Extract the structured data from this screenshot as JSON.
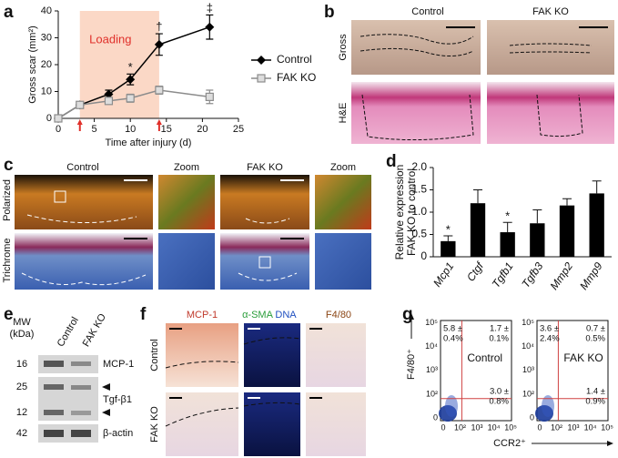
{
  "panel_labels": [
    "a",
    "b",
    "c",
    "d",
    "e",
    "f",
    "g"
  ],
  "chart_data": [
    {
      "type": "line",
      "x_label": "Time after injury (d)",
      "y_label": "Gross scar (mm²)",
      "x": [
        0,
        3,
        7,
        10,
        14,
        21
      ],
      "series": [
        {
          "name": "Control",
          "color": "#000000",
          "marker": "diamond",
          "values": [
            0,
            5,
            9,
            14.5,
            27.5,
            34
          ],
          "errors": [
            0,
            0.5,
            1.5,
            2,
            4,
            4.5
          ]
        },
        {
          "name": "FAK KO",
          "color": "#8c8c8c",
          "marker": "square",
          "values": [
            0,
            5,
            6.5,
            7.5,
            10.5,
            8
          ],
          "errors": [
            0,
            0.5,
            1,
            1.5,
            1.5,
            2.5
          ]
        }
      ],
      "significance": [
        null,
        null,
        null,
        "*",
        "†",
        "‡"
      ],
      "shade_label": "Loading",
      "shade_x": [
        3,
        14
      ],
      "shade_color": "#fbd8c6",
      "shade_label_color": "#e0302a",
      "xlim": [
        0,
        25
      ],
      "xticks": [
        0,
        5,
        10,
        15,
        20,
        25
      ],
      "ylim": [
        0,
        40
      ],
      "yticks": [
        0,
        10,
        20,
        30,
        40
      ],
      "legend": "right"
    },
    {
      "type": "bar",
      "y_label": [
        "Relative expression",
        "FAK KO to control"
      ],
      "categories": [
        "Mcp1",
        "Ctgf",
        "Tgfb1",
        "Tgfb3",
        "Mmp2",
        "Mmp9"
      ],
      "values": [
        0.35,
        1.2,
        0.55,
        0.75,
        1.15,
        1.42
      ],
      "errors": [
        0.12,
        0.3,
        0.22,
        0.3,
        0.15,
        0.28
      ],
      "significance": [
        "*",
        null,
        "*",
        null,
        null,
        null
      ],
      "color": "#000000",
      "ylim": [
        0,
        2
      ],
      "yticks": [
        0,
        0.5,
        {
          "value": 1,
          "label": "1.0"
        },
        1.5,
        {
          "value": 2,
          "label": "2.0"
        }
      ]
    }
  ],
  "panel_b": {
    "columns": [
      "Control",
      "FAK KO"
    ],
    "rows": [
      "Gross",
      "H&E"
    ]
  },
  "panel_c": {
    "columns": [
      "Control",
      "Zoom",
      "FAK KO",
      "Zoom"
    ],
    "rows": [
      "Polarized",
      "Trichrome"
    ]
  },
  "panel_e": {
    "mw_title": [
      "MW",
      "(kDa)"
    ],
    "lanes": [
      "Control",
      "FAK KO"
    ],
    "mw": [
      16,
      25,
      12,
      42
    ],
    "bands": [
      "MCP-1",
      "Tgf-β1",
      "β-actin"
    ]
  },
  "panel_f": {
    "columns": [
      "MCP-1",
      "α-SMA",
      "DNA",
      "F4/80"
    ],
    "rows": [
      "Control",
      "FAK KO"
    ]
  },
  "panel_g": {
    "y_label": "F4/80⁺",
    "x_label": "CCR2⁺",
    "ticks": [
      "0",
      "10²",
      "10³",
      "10⁴",
      "10⁵"
    ],
    "plots": [
      {
        "name": "Control",
        "quadrants": [
          [
            "5.8 ±",
            "0.4%"
          ],
          [
            "1.7 ±",
            "0.1%"
          ],
          [
            "3.0 ±",
            "0.8%"
          ]
        ]
      },
      {
        "name": "FAK KO",
        "quadrants": [
          [
            "3.6 ±",
            "2.4%"
          ],
          [
            "0.7 ±",
            "0.5%"
          ],
          [
            "1.4 ±",
            "0.9%"
          ]
        ]
      }
    ]
  }
}
